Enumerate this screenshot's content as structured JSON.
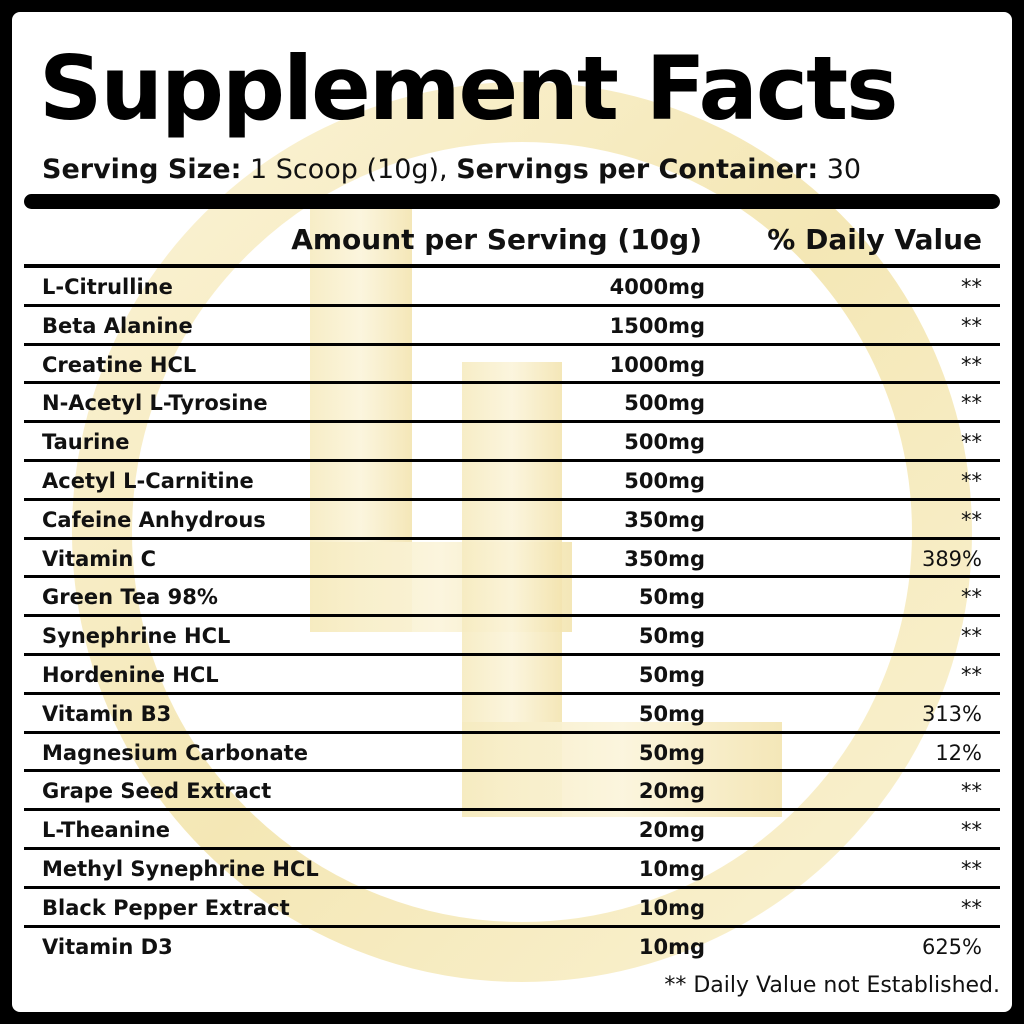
{
  "label": {
    "title": "Supplement Facts",
    "serving_size_label": "Serving Size:",
    "serving_size_value": " 1 Scoop (10g), ",
    "servings_label": "Servings per Container:",
    "servings_value": " 30",
    "header_amount": "Amount per Serving (10g)",
    "header_dv": "% Daily Value",
    "footnote": "** Daily Value not Established."
  },
  "ingredients": [
    {
      "name": "L-Citrulline",
      "amount": "4000mg",
      "dv": "**"
    },
    {
      "name": "Beta Alanine",
      "amount": "1500mg",
      "dv": "**"
    },
    {
      "name": "Creatine HCL",
      "amount": "1000mg",
      "dv": "**"
    },
    {
      "name": "N-Acetyl L-Tyrosine",
      "amount": "500mg",
      "dv": "**"
    },
    {
      "name": "Taurine",
      "amount": "500mg",
      "dv": "**"
    },
    {
      "name": "Acetyl L-Carnitine",
      "amount": "500mg",
      "dv": "**"
    },
    {
      "name": "Cafeine Anhydrous",
      "amount": "350mg",
      "dv": "**"
    },
    {
      "name": "Vitamin C",
      "amount": "350mg",
      "dv": "389%"
    },
    {
      "name": "Green Tea 98%",
      "amount": "50mg",
      "dv": "**"
    },
    {
      "name": "Synephrine HCL",
      "amount": "50mg",
      "dv": "**"
    },
    {
      "name": "Hordenine HCL",
      "amount": "50mg",
      "dv": "**"
    },
    {
      "name": "Vitamin B3",
      "amount": "50mg",
      "dv": "313%"
    },
    {
      "name": "Magnesium Carbonate",
      "amount": "50mg",
      "dv": "12%"
    },
    {
      "name": "Grape Seed Extract",
      "amount": "20mg",
      "dv": "**"
    },
    {
      "name": "L-Theanine",
      "amount": "20mg",
      "dv": "**"
    },
    {
      "name": "Methyl Synephrine HCL",
      "amount": "10mg",
      "dv": "**"
    },
    {
      "name": "Black Pepper Extract",
      "amount": "10mg",
      "dv": "**"
    },
    {
      "name": "Vitamin D3",
      "amount": "10mg",
      "dv": "625%"
    }
  ],
  "colors": {
    "background": "#000000",
    "panel": "#ffffff",
    "text": "#111111",
    "watermark": "#f6ecc2"
  },
  "watermark_icon": "gold-ring-logo-icon"
}
